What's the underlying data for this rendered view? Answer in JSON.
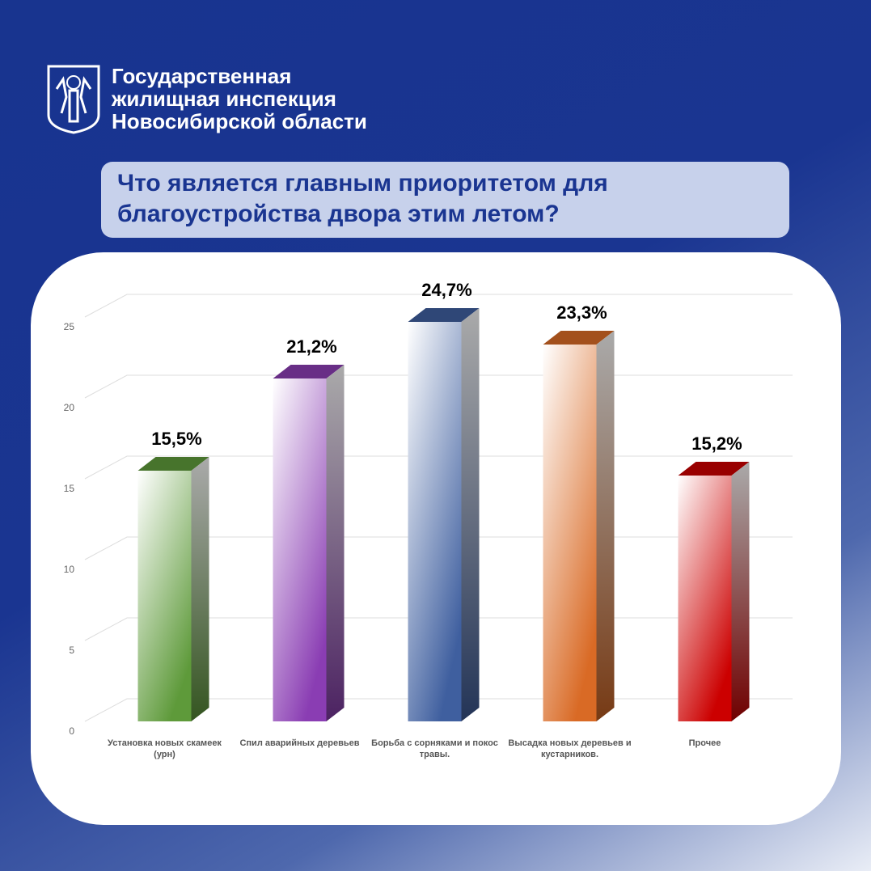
{
  "header": {
    "org": [
      "Государственная",
      "жилищная инспекция",
      "Новосибирской области"
    ],
    "question": [
      "Что является главным приоритетом для",
      "благоустройства двора этим летом?"
    ]
  },
  "chart_data": {
    "type": "bar",
    "categories": [
      "Установка новых скамеек (урн)",
      "Спил аварийных деревьев",
      "Борьба с сорняками и покос травы.",
      "Высадка новых деревьев и кустарников.",
      "Прочее"
    ],
    "values": [
      15.5,
      21.2,
      24.7,
      23.3,
      15.2
    ],
    "value_labels": [
      "15,5%",
      "21,2%",
      "24,7%",
      "23,3%",
      "15,2%"
    ],
    "colors": [
      "#5e9a3a",
      "#8a3db3",
      "#3f5f9f",
      "#d96a25",
      "#cc0000"
    ],
    "ylim": [
      0,
      25
    ],
    "yticks": [
      0,
      5,
      10,
      15,
      20,
      25
    ],
    "grid": true
  }
}
